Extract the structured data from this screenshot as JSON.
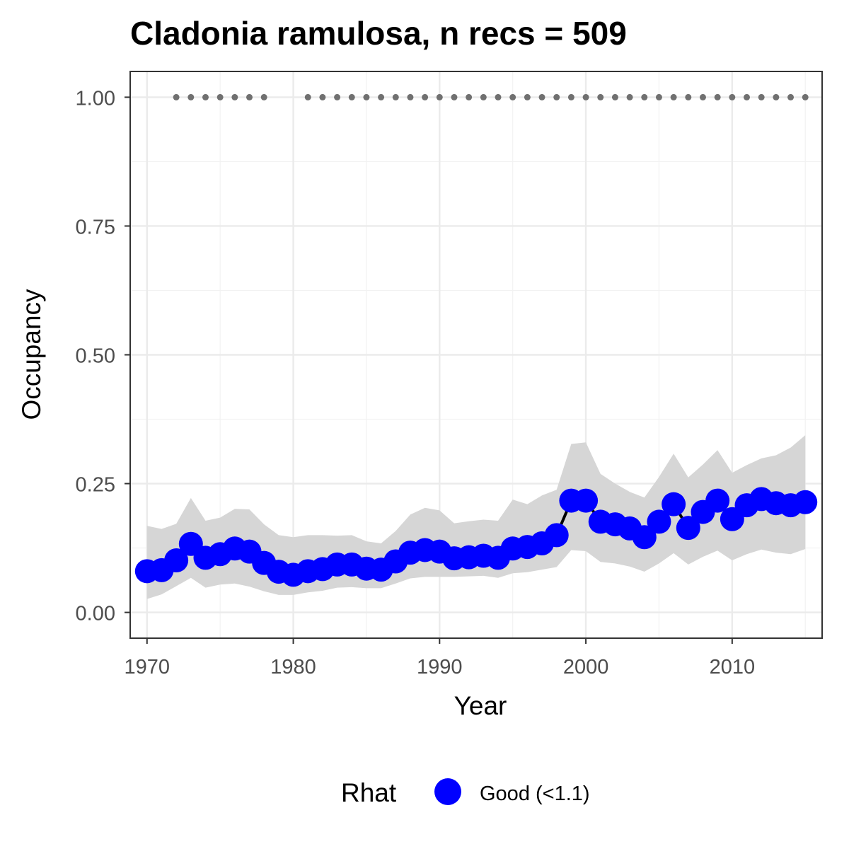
{
  "chart_data": {
    "type": "line",
    "title": "Cladonia ramulosa, n recs = 509",
    "xlabel": "Year",
    "ylabel": "Occupancy",
    "xlim": [
      1968.85,
      2016.15
    ],
    "ylim": [
      -0.05,
      1.05
    ],
    "x_ticks": [
      1970,
      1980,
      1990,
      2000,
      2010
    ],
    "x_tick_labels": [
      "1970",
      "1980",
      "1990",
      "2000",
      "2010"
    ],
    "y_ticks": [
      0.0,
      0.25,
      0.5,
      0.75,
      1.0
    ],
    "y_tick_labels": [
      "0.00",
      "0.25",
      "0.50",
      "0.75",
      "1.00"
    ],
    "x_minor_ticks": [
      1975,
      1985,
      1995,
      2005,
      2015
    ],
    "y_minor_ticks": [
      0.125,
      0.375,
      0.625,
      0.875
    ],
    "grid": true,
    "legend": {
      "title": "Rhat",
      "position": "bottom",
      "entries": [
        {
          "label": "Good (<1.1)",
          "color": "#0000ff"
        }
      ]
    },
    "series": [
      {
        "name": "Good (<1.1)",
        "color": "#0000ff",
        "line_color": "#000000",
        "band_color": "#d6d6d6",
        "x": [
          1970,
          1971,
          1972,
          1973,
          1974,
          1975,
          1976,
          1977,
          1978,
          1979,
          1980,
          1981,
          1982,
          1983,
          1984,
          1985,
          1986,
          1987,
          1988,
          1989,
          1990,
          1991,
          1992,
          1993,
          1994,
          1995,
          1996,
          1997,
          1998,
          1999,
          2000,
          2001,
          2002,
          2003,
          2004,
          2005,
          2006,
          2007,
          2008,
          2009,
          2010,
          2011,
          2012,
          2013,
          2014,
          2015
        ],
        "y": [
          0.08,
          0.082,
          0.101,
          0.133,
          0.106,
          0.113,
          0.124,
          0.118,
          0.096,
          0.079,
          0.073,
          0.08,
          0.084,
          0.093,
          0.093,
          0.085,
          0.083,
          0.099,
          0.116,
          0.121,
          0.118,
          0.105,
          0.107,
          0.11,
          0.106,
          0.124,
          0.127,
          0.134,
          0.15,
          0.217,
          0.217,
          0.176,
          0.171,
          0.163,
          0.146,
          0.176,
          0.21,
          0.164,
          0.195,
          0.217,
          0.181,
          0.208,
          0.22,
          0.212,
          0.208,
          0.214
        ],
        "lower": [
          0.026,
          0.035,
          0.051,
          0.067,
          0.048,
          0.054,
          0.056,
          0.05,
          0.041,
          0.034,
          0.034,
          0.039,
          0.042,
          0.048,
          0.049,
          0.047,
          0.047,
          0.056,
          0.066,
          0.069,
          0.069,
          0.069,
          0.07,
          0.071,
          0.067,
          0.076,
          0.078,
          0.083,
          0.088,
          0.121,
          0.119,
          0.098,
          0.095,
          0.089,
          0.079,
          0.095,
          0.115,
          0.093,
          0.108,
          0.12,
          0.101,
          0.113,
          0.122,
          0.116,
          0.113,
          0.123
        ],
        "upper": [
          0.168,
          0.162,
          0.172,
          0.222,
          0.178,
          0.184,
          0.201,
          0.2,
          0.171,
          0.15,
          0.146,
          0.15,
          0.15,
          0.149,
          0.15,
          0.138,
          0.134,
          0.158,
          0.19,
          0.203,
          0.198,
          0.173,
          0.177,
          0.18,
          0.178,
          0.219,
          0.21,
          0.227,
          0.238,
          0.327,
          0.33,
          0.269,
          0.25,
          0.234,
          0.223,
          0.263,
          0.308,
          0.262,
          0.287,
          0.315,
          0.271,
          0.286,
          0.299,
          0.305,
          0.32,
          0.344
        ]
      }
    ],
    "records": {
      "color": "#707070",
      "y": 1.0,
      "years": [
        1972,
        1973,
        1974,
        1975,
        1976,
        1977,
        1978,
        1981,
        1982,
        1983,
        1984,
        1985,
        1986,
        1987,
        1988,
        1989,
        1990,
        1991,
        1992,
        1993,
        1994,
        1995,
        1996,
        1997,
        1998,
        1999,
        2000,
        2001,
        2002,
        2003,
        2004,
        2005,
        2006,
        2007,
        2008,
        2009,
        2010,
        2011,
        2012,
        2013,
        2014,
        2015
      ]
    }
  }
}
